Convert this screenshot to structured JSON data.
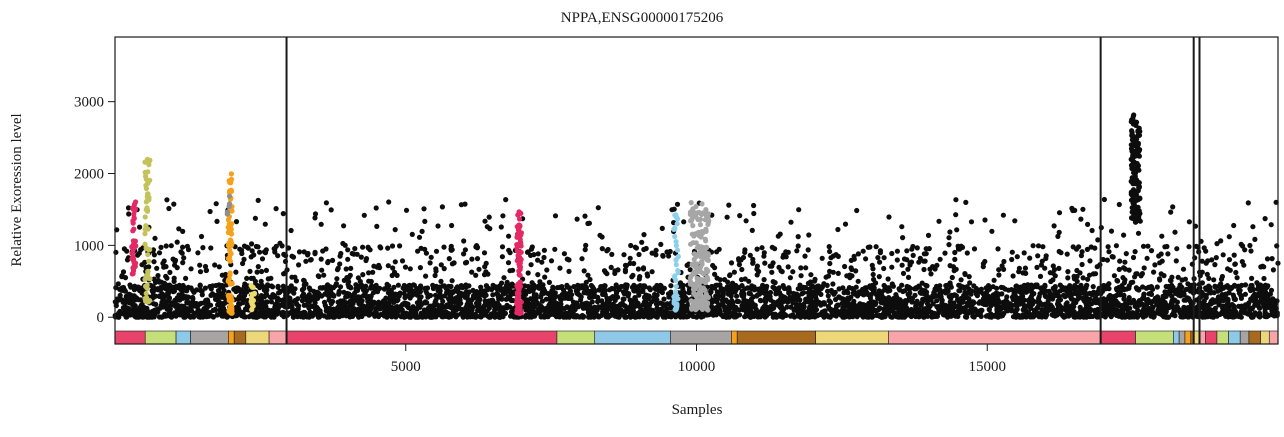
{
  "chart_data": {
    "type": "scatter",
    "title": "NPPA,ENSG00000175206",
    "xlabel": "Samples",
    "ylabel": "Relative Exoression level",
    "xlim": [
      0,
      20000
    ],
    "ylim": [
      -150,
      3900
    ],
    "x_ticks": [
      5000,
      10000,
      15000
    ],
    "y_ticks": [
      0,
      1000,
      2000,
      3000
    ],
    "grid": false,
    "legend": "none",
    "point_color_default": "#0d0d0d",
    "vertical_lines_at": [
      2950,
      16950,
      18550,
      18650
    ],
    "bands": [
      {
        "x0": 0,
        "x1": 520,
        "color": "#e8436b"
      },
      {
        "x0": 520,
        "x1": 1050,
        "color": "#c5e07a"
      },
      {
        "x0": 1050,
        "x1": 1300,
        "color": "#8ec9e8"
      },
      {
        "x0": 1300,
        "x1": 1950,
        "color": "#a8a4a4"
      },
      {
        "x0": 1950,
        "x1": 2050,
        "color": "#f5a11c"
      },
      {
        "x0": 2050,
        "x1": 2250,
        "color": "#a86a1e"
      },
      {
        "x0": 2250,
        "x1": 2650,
        "color": "#ecd878"
      },
      {
        "x0": 2650,
        "x1": 2950,
        "color": "#f7a5a8"
      },
      {
        "x0": 2950,
        "x1": 7600,
        "color": "#e8436b"
      },
      {
        "x0": 7600,
        "x1": 8250,
        "color": "#c5e07a"
      },
      {
        "x0": 8250,
        "x1": 9550,
        "color": "#8ec9e8"
      },
      {
        "x0": 9550,
        "x1": 10600,
        "color": "#a8a4a4"
      },
      {
        "x0": 10600,
        "x1": 10700,
        "color": "#f5a11c"
      },
      {
        "x0": 10700,
        "x1": 12050,
        "color": "#a86a1e"
      },
      {
        "x0": 12050,
        "x1": 13300,
        "color": "#ecd878"
      },
      {
        "x0": 13300,
        "x1": 16950,
        "color": "#f7a5a8"
      },
      {
        "x0": 16950,
        "x1": 17550,
        "color": "#e8436b"
      },
      {
        "x0": 17550,
        "x1": 18200,
        "color": "#c5e07a"
      },
      {
        "x0": 18200,
        "x1": 18300,
        "color": "#8ec9e8"
      },
      {
        "x0": 18300,
        "x1": 18400,
        "color": "#a8a4a4"
      },
      {
        "x0": 18400,
        "x1": 18500,
        "color": "#f5a11c"
      },
      {
        "x0": 18500,
        "x1": 18550,
        "color": "#a86a1e"
      },
      {
        "x0": 18550,
        "x1": 18650,
        "color": "#ecd878"
      },
      {
        "x0": 18650,
        "x1": 18750,
        "color": "#f7a5a8"
      },
      {
        "x0": 18750,
        "x1": 18950,
        "color": "#e8436b"
      },
      {
        "x0": 18950,
        "x1": 19150,
        "color": "#c5e07a"
      },
      {
        "x0": 19150,
        "x1": 19350,
        "color": "#8ec9e8"
      },
      {
        "x0": 19350,
        "x1": 19500,
        "color": "#a8a4a4"
      },
      {
        "x0": 19500,
        "x1": 19700,
        "color": "#a86a1e"
      },
      {
        "x0": 19700,
        "x1": 19850,
        "color": "#ecd878"
      },
      {
        "x0": 19850,
        "x1": 20000,
        "color": "#f7a5a8"
      }
    ],
    "highlighted_groups": [
      {
        "x_center": 320,
        "x_spread": 80,
        "y_min": 600,
        "y_max": 1680,
        "color": "#e32a66",
        "n": 40
      },
      {
        "x_center": 560,
        "x_spread": 90,
        "y_min": 200,
        "y_max": 2200,
        "color": "#c4c25a",
        "n": 55
      },
      {
        "x_center": 1980,
        "x_spread": 70,
        "y_min": 50,
        "y_max": 2020,
        "color": "#f5a11c",
        "n": 70
      },
      {
        "x_center": 1950,
        "x_spread": 40,
        "y_min": 1400,
        "y_max": 1720,
        "color": "#8f8f8f",
        "n": 6
      },
      {
        "x_center": 2370,
        "x_spread": 60,
        "y_min": 100,
        "y_max": 500,
        "color": "#eedc6e",
        "n": 14
      },
      {
        "x_center": 6950,
        "x_spread": 80,
        "y_min": 50,
        "y_max": 1510,
        "color": "#e32a66",
        "n": 80
      },
      {
        "x_center": 9650,
        "x_spread": 80,
        "y_min": 100,
        "y_max": 1450,
        "color": "#8ed0ec",
        "n": 35
      },
      {
        "x_center": 10050,
        "x_spread": 320,
        "y_min": 100,
        "y_max": 1620,
        "color": "#a6a6a6",
        "n": 180
      },
      {
        "x_center": 17550,
        "x_spread": 150,
        "y_min": 1300,
        "y_max": 2850,
        "color": "#0d0d0d",
        "n": 140
      }
    ],
    "background_points": {
      "n": 5200,
      "typical_range": [
        0,
        450
      ],
      "max_outlier": 1650,
      "note": "dense black points across all samples"
    }
  }
}
